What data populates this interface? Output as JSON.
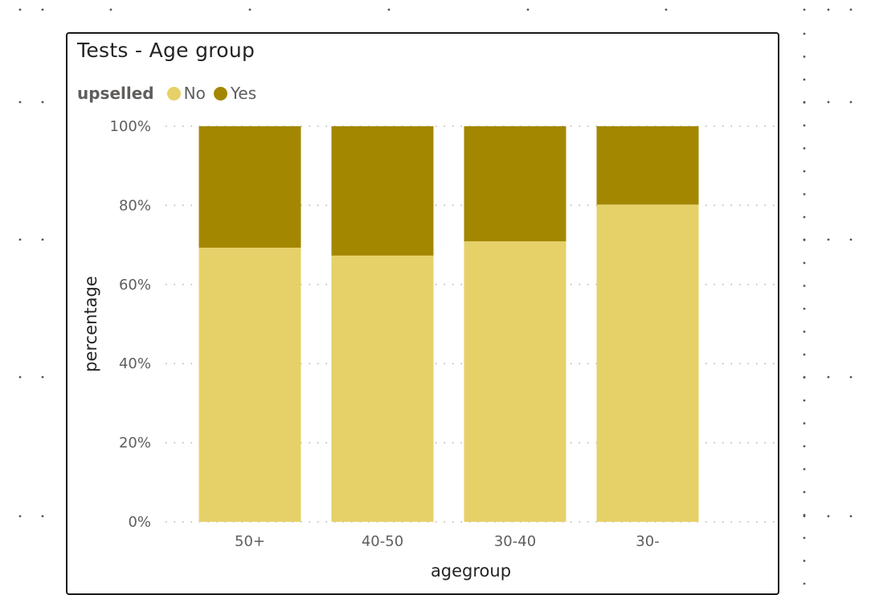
{
  "visual": {
    "title": "Tests - Age group"
  },
  "legend": {
    "title": "upselled",
    "items": [
      {
        "label": "No",
        "color": "#E6D169"
      },
      {
        "label": "Yes",
        "color": "#A38700"
      }
    ]
  },
  "chart_data": {
    "type": "bar",
    "stacked": "100%",
    "title": "Tests - Age group",
    "xlabel": "agegroup",
    "ylabel": "percentage",
    "categories": [
      "50+",
      "40-50",
      "30-40",
      "30-"
    ],
    "series": [
      {
        "name": "No",
        "color": "#E6D169",
        "values": [
          69.3,
          67.3,
          70.9,
          80.2
        ]
      },
      {
        "name": "Yes",
        "color": "#A38700",
        "values": [
          30.7,
          32.7,
          29.1,
          19.8
        ]
      }
    ],
    "y_ticks": [
      "0%",
      "20%",
      "40%",
      "60%",
      "80%",
      "100%"
    ],
    "ylim": [
      0,
      100
    ],
    "grid": true,
    "legend_position": "top-left"
  }
}
